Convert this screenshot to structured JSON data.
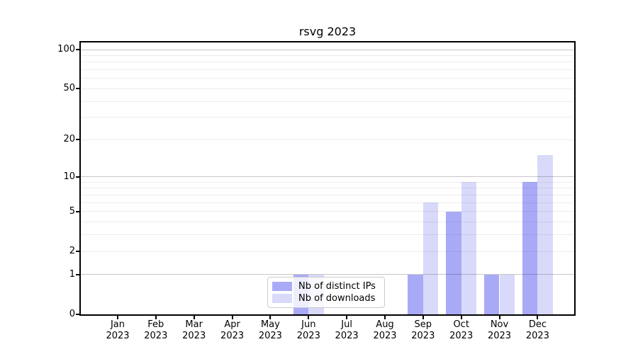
{
  "title": "rsvg 2023",
  "chart_data": {
    "type": "bar",
    "title": "rsvg 2023",
    "categories": [
      "Jan",
      "Feb",
      "Mar",
      "Apr",
      "May",
      "Jun",
      "Jul",
      "Aug",
      "Sep",
      "Oct",
      "Nov",
      "Dec"
    ],
    "x_tick_second_line": "2023",
    "series": [
      {
        "name": "Nb of distinct IPs",
        "color": "#a9aaf6",
        "values": [
          0,
          0,
          0,
          0,
          0,
          1,
          0,
          0,
          1,
          5,
          1,
          9
        ]
      },
      {
        "name": "Nb of downloads",
        "color": "#d9daf9",
        "values": [
          0,
          0,
          0,
          0,
          0,
          1,
          0,
          0,
          6,
          9,
          1,
          15
        ]
      }
    ],
    "scale": "log1p",
    "ylim": [
      0,
      113
    ],
    "yticks": [
      0,
      1,
      2,
      5,
      10,
      20,
      50,
      100
    ],
    "major_gridlines": [
      1,
      10,
      100
    ],
    "minor_gridlines": [
      2,
      3,
      4,
      5,
      6,
      7,
      8,
      9,
      20,
      30,
      40,
      50,
      60,
      70,
      80,
      90
    ],
    "grid": true,
    "legend_position": "lower center",
    "colors": {
      "background": "#ffffff",
      "axis": "#000000",
      "grid_major": "#c9c9c9",
      "grid_minor": "#ececec"
    }
  }
}
